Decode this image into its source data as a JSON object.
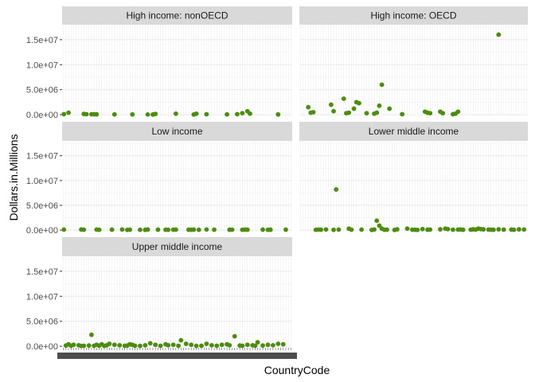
{
  "chart_data": {
    "type": "scatter",
    "faceted": true,
    "xlabel": "CountryCode",
    "ylabel": "Dollars.in.Millions",
    "ylim": [
      -300000,
      18000000
    ],
    "y_ticks": [
      0,
      5000000,
      10000000,
      15000000
    ],
    "y_tick_labels": [
      "0.0e+00",
      "5.0e+06",
      "1.0e+07",
      "1.5e+07"
    ],
    "x_tick_labels_note": "overlapping country-code labels, unreadable",
    "point_color": "#4d8c0f",
    "panel_background": "#ffffff",
    "grid_color": "#ebebeb",
    "strip_background": "#d9d9d9",
    "facets": [
      {
        "label": "High income: nonOECD",
        "x": [
          0.2,
          2,
          8,
          9,
          11,
          12,
          13,
          20,
          27,
          33,
          35,
          36,
          44,
          51,
          52,
          56,
          64,
          68,
          70,
          72,
          73,
          84
        ],
        "y": [
          100000,
          400000,
          150000,
          100000,
          80000,
          90000,
          70000,
          60000,
          50000,
          40000,
          30000,
          150000,
          200000,
          30000,
          200000,
          80000,
          60000,
          100000,
          300000,
          700000,
          200000,
          50000
        ]
      },
      {
        "label": "High income: OECD",
        "x": [
          3,
          4,
          5,
          12,
          13,
          17,
          18,
          19,
          21,
          22,
          23,
          26,
          29,
          30,
          31,
          32,
          35,
          40,
          49,
          50,
          51,
          55,
          56,
          60,
          61,
          62,
          78
        ],
        "y": [
          1500000,
          400000,
          500000,
          2000000,
          700000,
          3200000,
          300000,
          400000,
          1200000,
          2500000,
          2300000,
          300000,
          200000,
          400000,
          1800000,
          6000000,
          1200000,
          100000,
          600000,
          400000,
          300000,
          600000,
          300000,
          100000,
          200000,
          600000,
          16000000
        ]
      },
      {
        "label": "Low income",
        "x": [
          0.2,
          7,
          8,
          13,
          14,
          19,
          23,
          25,
          26,
          30,
          32,
          33,
          37,
          40,
          41,
          43,
          44,
          49,
          50,
          51,
          53,
          56,
          59,
          65,
          66,
          70,
          71,
          72,
          78,
          80,
          81,
          87
        ],
        "y": [
          100000,
          120000,
          80000,
          100000,
          60000,
          90000,
          120000,
          40000,
          80000,
          60000,
          50000,
          110000,
          90000,
          70000,
          60000,
          80000,
          100000,
          70000,
          60000,
          90000,
          60000,
          120000,
          80000,
          70000,
          80000,
          60000,
          90000,
          80000,
          90000,
          60000,
          70000,
          90000
        ]
      },
      {
        "label": "Lower middle income",
        "x": [
          6,
          7,
          8,
          10,
          13,
          14,
          15,
          19,
          20,
          24,
          28,
          29,
          30,
          31,
          32,
          33,
          34,
          37,
          38,
          42,
          44,
          45,
          46,
          48,
          50,
          51,
          55,
          57,
          58,
          60,
          62,
          63,
          64,
          67,
          68,
          69,
          70,
          71,
          72,
          74,
          75,
          76,
          78,
          80,
          83,
          84,
          86,
          88
        ],
        "y": [
          60000,
          100000,
          80000,
          120000,
          50000,
          8200000,
          100000,
          300000,
          80000,
          100000,
          30000,
          120000,
          1900000,
          900000,
          300000,
          70000,
          80000,
          30000,
          150000,
          300000,
          80000,
          60000,
          40000,
          200000,
          70000,
          100000,
          150000,
          300000,
          200000,
          80000,
          100000,
          120000,
          60000,
          80000,
          150000,
          100000,
          300000,
          200000,
          150000,
          100000,
          80000,
          60000,
          150000,
          90000,
          100000,
          60000,
          150000,
          120000
        ]
      },
      {
        "label": "Upper middle income",
        "x": [
          1,
          2,
          3,
          4,
          6,
          7,
          8,
          10,
          11,
          12,
          13,
          14,
          15,
          16,
          17,
          18,
          20,
          22,
          24,
          25,
          26,
          27,
          28,
          30,
          32,
          34,
          36,
          38,
          40,
          41,
          43,
          45,
          46,
          48,
          50,
          52,
          54,
          56,
          58,
          60,
          62,
          64,
          65,
          67,
          69,
          70,
          72,
          74,
          75,
          76,
          78,
          80,
          82,
          84,
          86
        ],
        "y": [
          150000,
          400000,
          100000,
          300000,
          200000,
          80000,
          100000,
          150000,
          2300000,
          100000,
          300000,
          120000,
          400000,
          80000,
          200000,
          500000,
          300000,
          200000,
          100000,
          150000,
          400000,
          300000,
          100000,
          80000,
          200000,
          600000,
          300000,
          100000,
          400000,
          200000,
          300000,
          100000,
          1200000,
          500000,
          300000,
          80000,
          100000,
          500000,
          200000,
          100000,
          300000,
          400000,
          200000,
          2000000,
          150000,
          100000,
          300000,
          200000,
          100000,
          800000,
          150000,
          300000,
          200000,
          500000,
          400000
        ]
      }
    ]
  }
}
